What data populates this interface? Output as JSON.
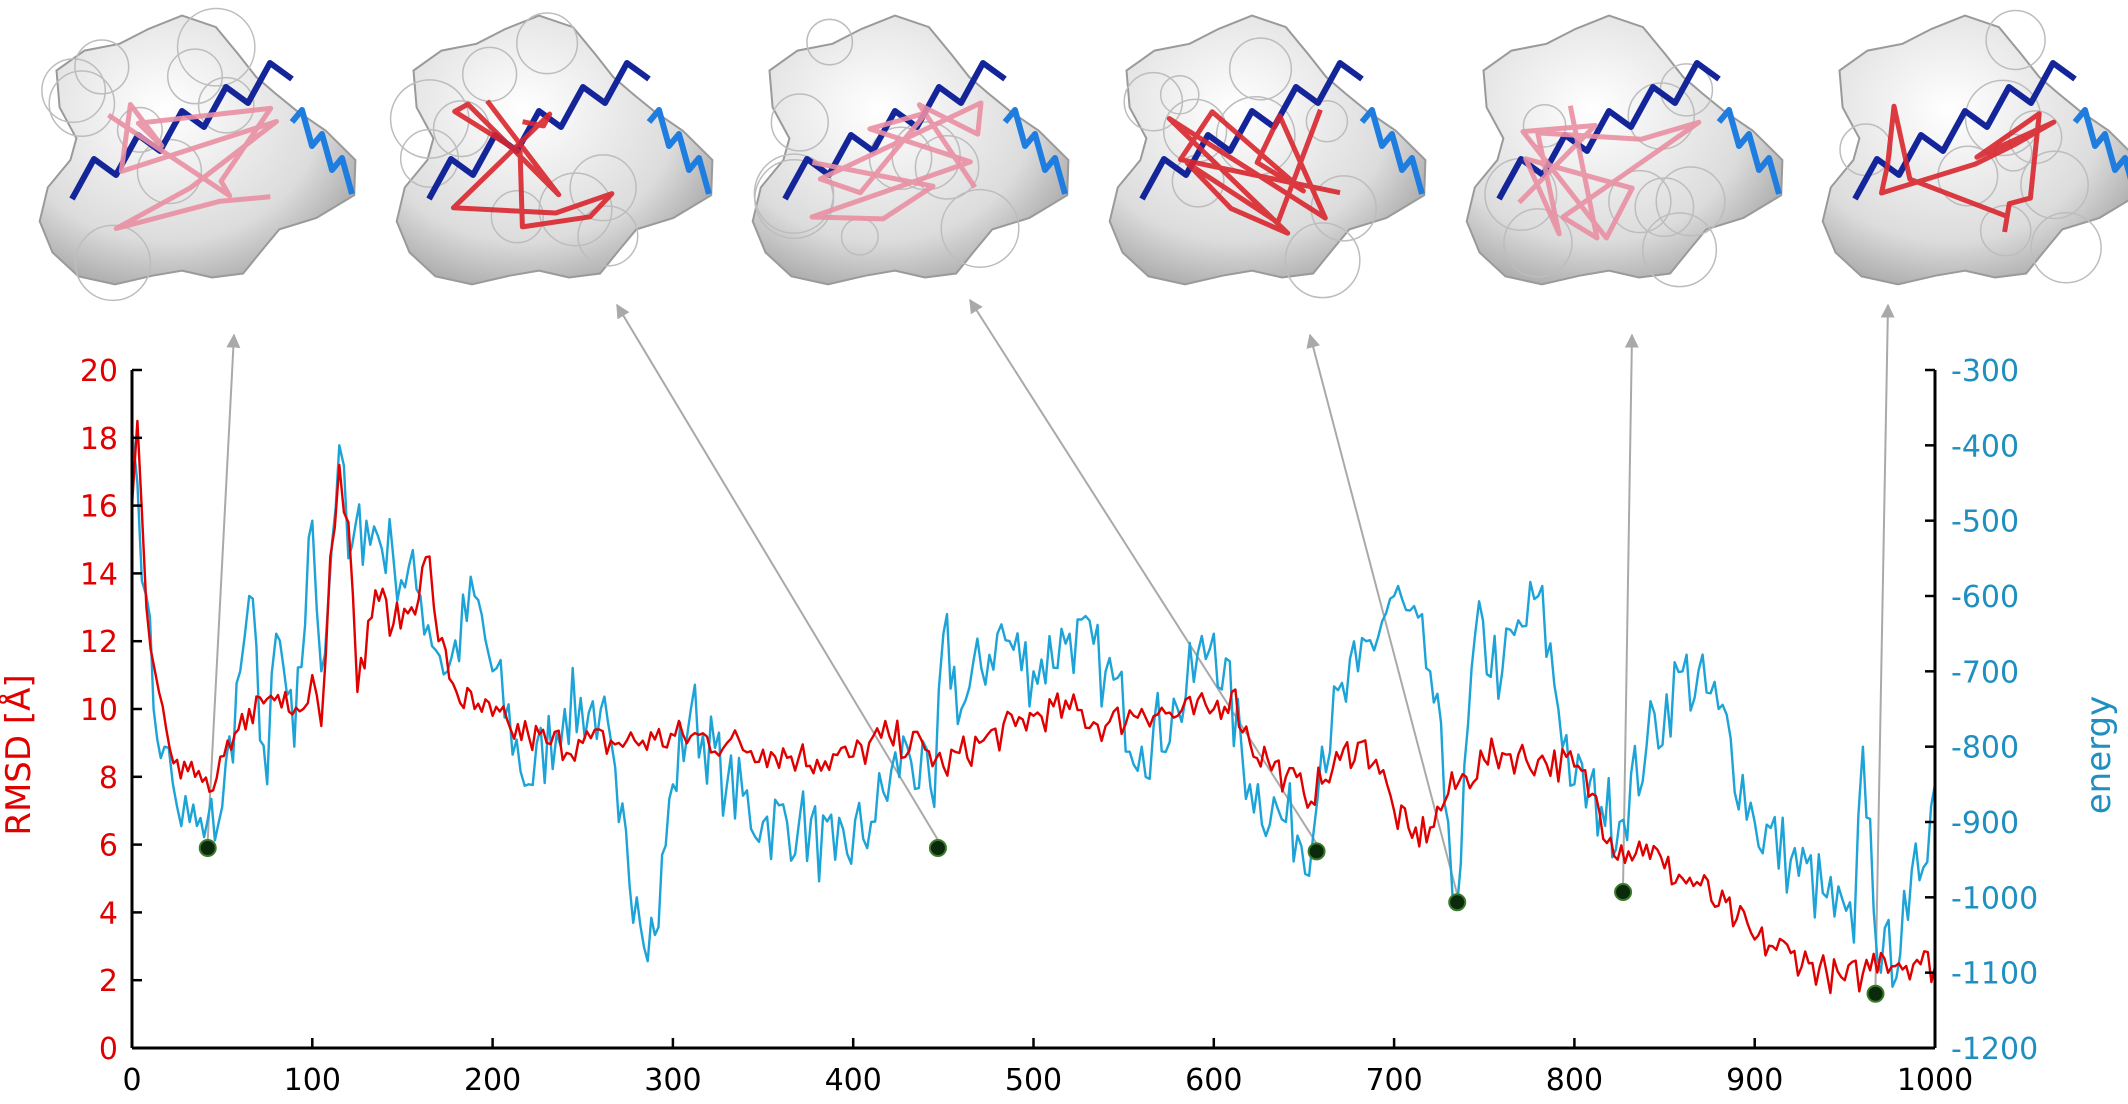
{
  "colors": {
    "rmsd": "#e00000",
    "energy": "#1ca3d8",
    "right_axis_text": "#1f8fc0",
    "marker": "#0b2a0b",
    "arrow": "#a9a9a9",
    "surface": "#d9d9d9",
    "helix_dark": "#14259a",
    "helix_light": "#1f7de0",
    "peptide": "#d8262e",
    "peptide_pink": "#e98fa3"
  },
  "chart_data": {
    "type": "line",
    "xlim": [
      0,
      1000
    ],
    "ylim_left": [
      0,
      20
    ],
    "ylim_right": [
      -1200,
      -300
    ],
    "x_ticks": [
      "0",
      "100",
      "200",
      "300",
      "400",
      "500",
      "600",
      "700",
      "800",
      "900",
      "1000"
    ],
    "y_left_ticks": [
      "0",
      "2",
      "4",
      "6",
      "8",
      "10",
      "12",
      "14",
      "16",
      "18",
      "20"
    ],
    "y_right_ticks": [
      "-300",
      "-400",
      "-500",
      "-600",
      "-700",
      "-800",
      "-900",
      "-1000",
      "-1100",
      "-1200"
    ],
    "ylabel_left": "RMSD [Å]",
    "ylabel_right": "energy",
    "grid": false,
    "series": [
      {
        "axis": "left",
        "color": "#e00000",
        "x": [
          0,
          3,
          8,
          15,
          25,
          35,
          45,
          55,
          65,
          75,
          85,
          95,
          100,
          105,
          110,
          115,
          120,
          125,
          135,
          145,
          155,
          165,
          170,
          180,
          190,
          200,
          210,
          220,
          230,
          250,
          270,
          290,
          310,
          330,
          350,
          370,
          380,
          400,
          420,
          440,
          450,
          470,
          490,
          500,
          520,
          540,
          560,
          580,
          600,
          610,
          620,
          630,
          640,
          650,
          660,
          670,
          680,
          690,
          700,
          710,
          720,
          730,
          740,
          750,
          760,
          780,
          800,
          810,
          820,
          830,
          840,
          850,
          860,
          870,
          880,
          890,
          900,
          910,
          920,
          930,
          940,
          950,
          960,
          970,
          980,
          990,
          1000
        ],
        "y": [
          16.0,
          18.5,
          13.0,
          10.5,
          8.5,
          8.0,
          7.6,
          8.8,
          10.0,
          10.3,
          10.5,
          10.0,
          11.0,
          9.5,
          14.5,
          17.2,
          15.5,
          10.5,
          13.5,
          12.5,
          13.0,
          14.5,
          12.0,
          10.5,
          10.0,
          9.8,
          9.4,
          9.2,
          9.0,
          9.0,
          9.0,
          9.1,
          9.2,
          9.0,
          8.8,
          8.6,
          8.5,
          8.6,
          9.2,
          8.8,
          8.3,
          9.0,
          9.5,
          9.8,
          10.0,
          9.5,
          10.0,
          9.8,
          10.0,
          10.5,
          9.0,
          8.5,
          8.0,
          7.5,
          7.8,
          8.5,
          9.0,
          8.5,
          7.0,
          6.2,
          6.5,
          7.5,
          8.0,
          8.5,
          8.7,
          8.5,
          8.3,
          7.5,
          6.2,
          5.8,
          6.0,
          5.3,
          5.0,
          4.8,
          4.2,
          3.8,
          3.2,
          3.0,
          2.8,
          2.5,
          2.2,
          2.0,
          2.2,
          2.8,
          2.5,
          2.6,
          2.4
        ]
      },
      {
        "axis": "right",
        "color": "#1ca3d8",
        "x": [
          0,
          3,
          8,
          12,
          18,
          25,
          32,
          40,
          50,
          60,
          65,
          75,
          80,
          90,
          100,
          105,
          115,
          120,
          130,
          145,
          160,
          175,
          190,
          200,
          220,
          240,
          260,
          270,
          280,
          290,
          300,
          310,
          330,
          350,
          370,
          390,
          410,
          430,
          445,
          450,
          460,
          480,
          500,
          520,
          540,
          560,
          580,
          600,
          620,
          640,
          655,
          660,
          680,
          700,
          720,
          730,
          735,
          745,
          760,
          780,
          800,
          815,
          825,
          840,
          860,
          880,
          900,
          920,
          940,
          955,
          960,
          970,
          985,
          1000
        ],
        "y": [
          -380,
          -450,
          -600,
          -750,
          -800,
          -880,
          -900,
          -920,
          -880,
          -700,
          -600,
          -850,
          -650,
          -800,
          -500,
          -700,
          -400,
          -550,
          -500,
          -550,
          -600,
          -700,
          -600,
          -700,
          -850,
          -750,
          -750,
          -900,
          -1000,
          -1050,
          -850,
          -750,
          -850,
          -900,
          -900,
          -950,
          -900,
          -800,
          -880,
          -650,
          -750,
          -650,
          -700,
          -650,
          -700,
          -800,
          -750,
          -650,
          -850,
          -900,
          -920,
          -800,
          -700,
          -600,
          -700,
          -900,
          -1010,
          -650,
          -700,
          -600,
          -850,
          -880,
          -900,
          -800,
          -700,
          -750,
          -900,
          -950,
          -1000,
          -1060,
          -800,
          -1100,
          -1030,
          -850
        ]
      }
    ],
    "markers": {
      "axis": "left",
      "x": [
        42,
        447,
        657,
        735,
        827,
        967
      ],
      "y": [
        5.9,
        5.9,
        5.8,
        4.3,
        4.6,
        1.6
      ]
    }
  }
}
